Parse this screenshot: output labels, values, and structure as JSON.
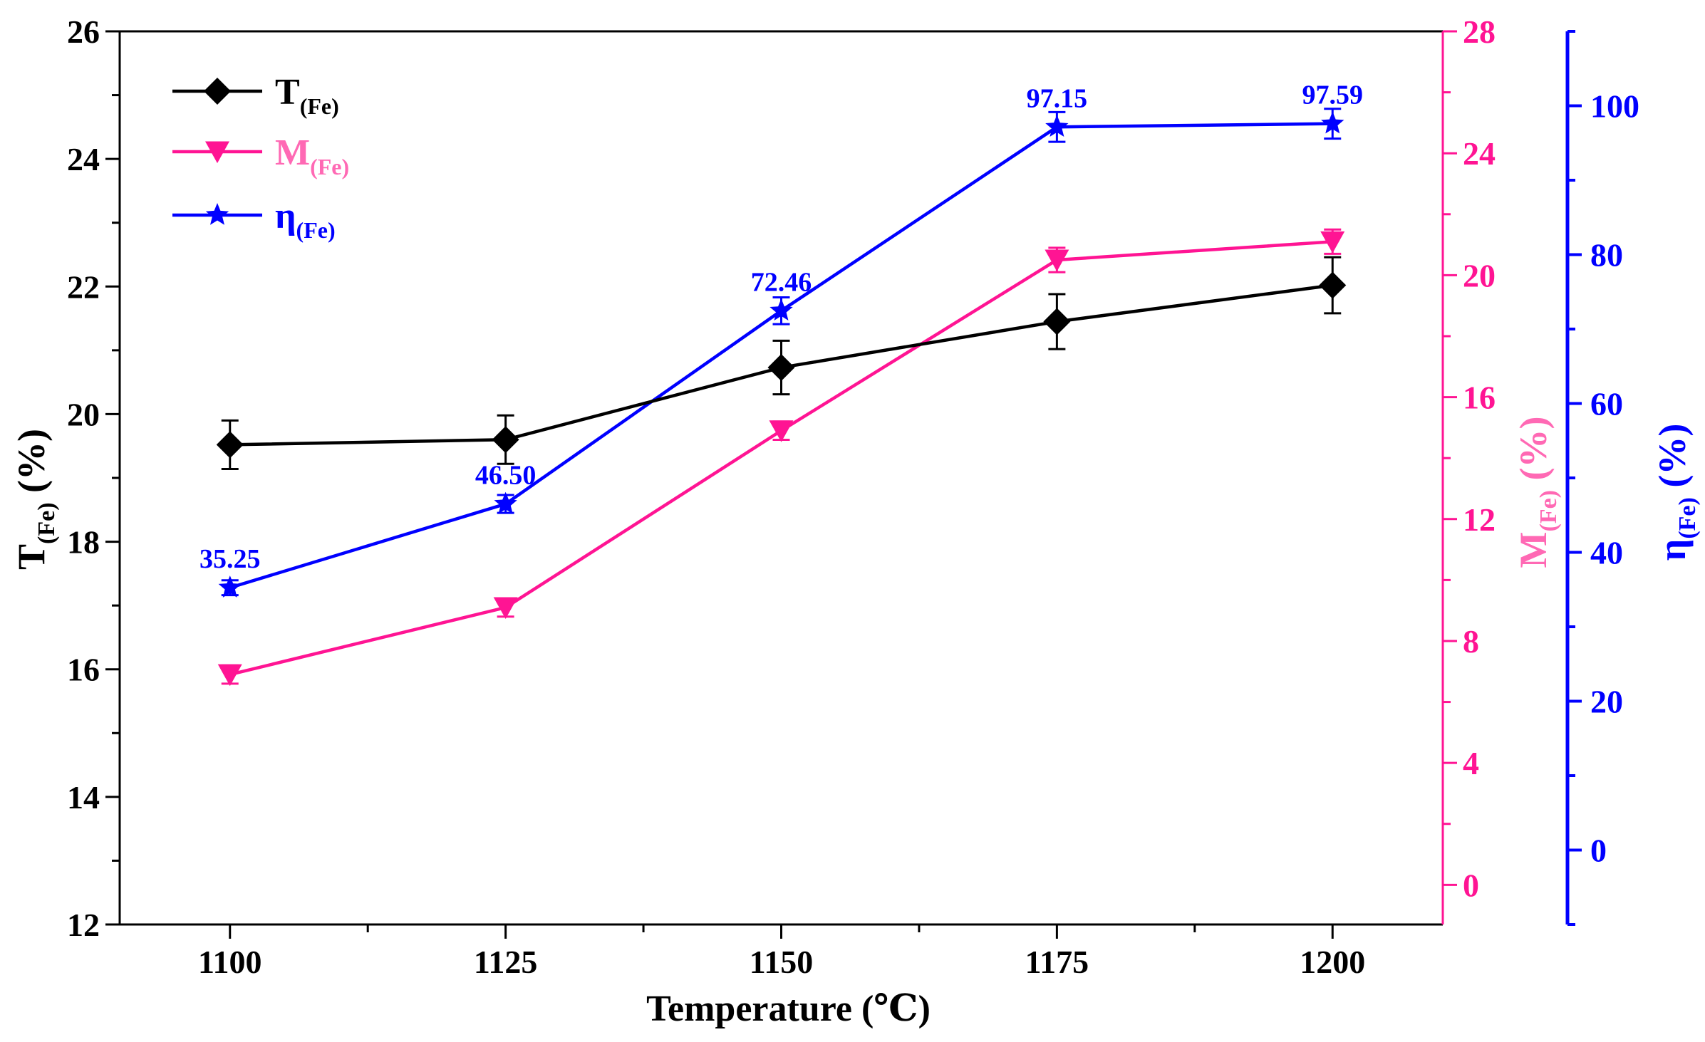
{
  "chart_data": {
    "type": "line",
    "x": [
      1100,
      1125,
      1150,
      1175,
      1200
    ],
    "x_tick_labels": [
      "1100",
      "1125",
      "1150",
      "1175",
      "1200"
    ],
    "xlabel": "Temperature (℃)",
    "xlim": [
      1090,
      1210
    ],
    "axes": {
      "left": {
        "label_main": "T",
        "label_sub": "(Fe)",
        "label_unit": " (%)",
        "ylim": [
          12,
          26
        ],
        "ticks": [
          12,
          14,
          16,
          18,
          20,
          22,
          24,
          26
        ],
        "tick_labels": [
          "12",
          "14",
          "16",
          "18",
          "20",
          "22",
          "24",
          "26"
        ],
        "color": "#000000"
      },
      "right1": {
        "label_main": "M",
        "label_sub": "(Fe)",
        "label_unit": " (%)",
        "ylim": [
          -1.3,
          28
        ],
        "ticks": [
          0,
          4,
          8,
          12,
          16,
          20,
          24,
          28
        ],
        "tick_labels": [
          "0",
          "4",
          "8",
          "12",
          "16",
          "20",
          "24",
          "28"
        ],
        "color": "#ff1493",
        "label_color": "#ff69b4"
      },
      "right2": {
        "label_main": "η",
        "label_sub": "(Fe)",
        "label_unit": " (%)",
        "ylim": [
          -10,
          110
        ],
        "ticks": [
          0,
          20,
          40,
          60,
          80,
          100
        ],
        "tick_labels": [
          "0",
          "20",
          "40",
          "60",
          "80",
          "100"
        ],
        "color": "#0000ff"
      }
    },
    "series": [
      {
        "name": "T(Fe)",
        "legend_main": "T",
        "legend_sub": "(Fe)",
        "axis": "left",
        "marker": "diamond",
        "color": "#000000",
        "values": [
          19.52,
          19.6,
          20.73,
          21.45,
          22.02
        ],
        "errors": [
          0.38,
          0.38,
          0.42,
          0.43,
          0.44
        ]
      },
      {
        "name": "M(Fe)",
        "legend_main": "M",
        "legend_sub": "(Fe)",
        "axis": "right1",
        "marker": "triangle-down",
        "color": "#ff1493",
        "legend_color": "#ff69b4",
        "values": [
          6.9,
          9.1,
          14.9,
          20.5,
          21.1
        ],
        "errors": [
          0.3,
          0.3,
          0.3,
          0.4,
          0.4
        ]
      },
      {
        "name": "η(Fe)",
        "legend_main": "η",
        "legend_sub": "(Fe)",
        "axis": "right2",
        "marker": "star",
        "color": "#0000ff",
        "values": [
          35.25,
          46.5,
          72.46,
          97.15,
          97.59
        ],
        "errors": [
          1.0,
          1.2,
          1.8,
          2.0,
          2.0
        ],
        "data_labels": [
          "35.25",
          "46.50",
          "72.46",
          "97.15",
          "97.59"
        ]
      }
    ],
    "legend_position": "top-left"
  }
}
